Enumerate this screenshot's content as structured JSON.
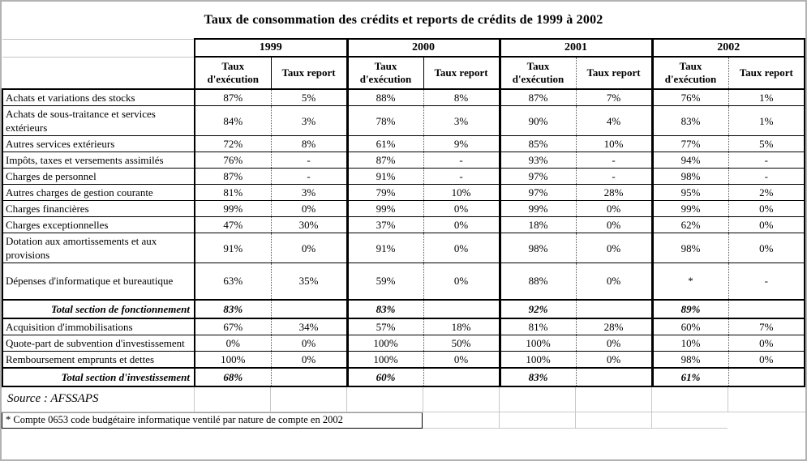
{
  "title": "Taux de consommation des crédits et reports de crédits de 1999 à 2002",
  "table": {
    "years": [
      "1999",
      "2000",
      "2001",
      "2002"
    ],
    "subheaders": {
      "execution": "Taux d'exécution",
      "report": "Taux report"
    },
    "rows": [
      {
        "label": "Achats et variations des stocks",
        "type": "data",
        "values": [
          "87%",
          "5%",
          "88%",
          "8%",
          "87%",
          "7%",
          "76%",
          "1%"
        ]
      },
      {
        "label": "Achats de sous-traitance et services extérieurs",
        "type": "data",
        "values": [
          "84%",
          "3%",
          "78%",
          "3%",
          "90%",
          "4%",
          "83%",
          "1%"
        ]
      },
      {
        "label": "Autres services extérieurs",
        "type": "data",
        "values": [
          "72%",
          "8%",
          "61%",
          "9%",
          "85%",
          "10%",
          "77%",
          "5%"
        ]
      },
      {
        "label": "Impôts, taxes et versements assimilés",
        "type": "data",
        "values": [
          "76%",
          "-",
          "87%",
          "-",
          "93%",
          "-",
          "94%",
          "-"
        ]
      },
      {
        "label": "Charges de personnel",
        "type": "data",
        "values": [
          "87%",
          "-",
          "91%",
          "-",
          "97%",
          "-",
          "98%",
          "-"
        ]
      },
      {
        "label": "Autres charges de gestion courante",
        "type": "data",
        "values": [
          "81%",
          "3%",
          "79%",
          "10%",
          "97%",
          "28%",
          "95%",
          "2%"
        ]
      },
      {
        "label": "Charges financières",
        "type": "data",
        "values": [
          "99%",
          "0%",
          "99%",
          "0%",
          "99%",
          "0%",
          "99%",
          "0%"
        ]
      },
      {
        "label": "Charges exceptionnelles",
        "type": "data",
        "values": [
          "47%",
          "30%",
          "37%",
          "0%",
          "18%",
          "0%",
          "62%",
          "0%"
        ]
      },
      {
        "label": "Dotation aux amortissements et aux provisions",
        "type": "data",
        "values": [
          "91%",
          "0%",
          "91%",
          "0%",
          "98%",
          "0%",
          "98%",
          "0%"
        ]
      },
      {
        "label": "Dépenses d'informatique et bureautique",
        "type": "data",
        "values": [
          "63%",
          "35%",
          "59%",
          "0%",
          "88%",
          "0%",
          "*",
          "-"
        ]
      },
      {
        "label": "Total section de fonctionnement",
        "type": "total",
        "values": [
          "83%",
          "",
          "83%",
          "",
          "92%",
          "",
          "89%",
          ""
        ]
      },
      {
        "label": "Acquisition d'immobilisations",
        "type": "data",
        "values": [
          "67%",
          "34%",
          "57%",
          "18%",
          "81%",
          "28%",
          "60%",
          "7%"
        ]
      },
      {
        "label": "Quote-part de subvention d'investissement",
        "type": "data",
        "values": [
          "0%",
          "0%",
          "100%",
          "50%",
          "100%",
          "0%",
          "10%",
          "0%"
        ]
      },
      {
        "label": "Remboursement emprunts et dettes",
        "type": "data",
        "values": [
          "100%",
          "0%",
          "100%",
          "0%",
          "100%",
          "0%",
          "98%",
          "0%"
        ]
      },
      {
        "label": "Total section d'investissement",
        "type": "total",
        "values": [
          "68%",
          "",
          "60%",
          "",
          "83%",
          "",
          "61%",
          ""
        ]
      }
    ]
  },
  "footer": {
    "source": "Source : AFSSAPS",
    "footnote": "* Compte 0653 code budgétaire informatique ventilé par nature de compte en 2002"
  }
}
